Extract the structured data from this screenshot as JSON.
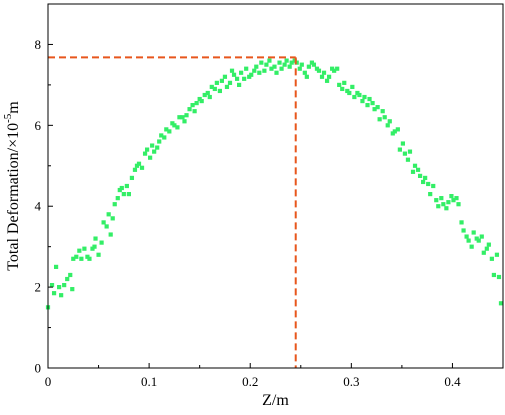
{
  "chart_data": {
    "type": "scatter",
    "title": "",
    "xlabel": "Z/m",
    "ylabel_main": "Total Deformation/×10",
    "ylabel_exp": "-5",
    "ylabel_unit": "m",
    "xlim": [
      0,
      0.45
    ],
    "ylim": [
      0,
      9
    ],
    "xticks": [
      0,
      0.1,
      0.2,
      0.3,
      0.4
    ],
    "xtick_labels": [
      "0",
      "0.1",
      "0.2",
      "0.3",
      "0.4"
    ],
    "yticks": [
      0,
      2,
      4,
      6,
      8
    ],
    "ytick_labels": [
      "0",
      "2",
      "4",
      "6",
      "8"
    ],
    "grid": false,
    "marker_color": "#33ee66",
    "reference_color": "#e8561c",
    "peak": {
      "x": 0.245,
      "y": 7.68
    },
    "series": [
      {
        "points": [
          [
            0.0,
            1.5
          ],
          [
            0.004,
            2.05
          ],
          [
            0.006,
            1.85
          ],
          [
            0.008,
            2.5
          ],
          [
            0.011,
            2.0
          ],
          [
            0.013,
            1.8
          ],
          [
            0.016,
            2.05
          ],
          [
            0.019,
            2.2
          ],
          [
            0.022,
            2.3
          ],
          [
            0.024,
            1.95
          ],
          [
            0.025,
            2.7
          ],
          [
            0.028,
            2.75
          ],
          [
            0.031,
            2.9
          ],
          [
            0.033,
            2.7
          ],
          [
            0.036,
            2.95
          ],
          [
            0.039,
            2.75
          ],
          [
            0.041,
            2.7
          ],
          [
            0.044,
            2.95
          ],
          [
            0.046,
            3.0
          ],
          [
            0.047,
            3.2
          ],
          [
            0.05,
            2.8
          ],
          [
            0.053,
            3.1
          ],
          [
            0.055,
            3.6
          ],
          [
            0.058,
            3.5
          ],
          [
            0.06,
            3.8
          ],
          [
            0.062,
            3.3
          ],
          [
            0.064,
            3.7
          ],
          [
            0.066,
            4.05
          ],
          [
            0.069,
            4.2
          ],
          [
            0.071,
            4.4
          ],
          [
            0.073,
            4.45
          ],
          [
            0.075,
            4.3
          ],
          [
            0.078,
            4.5
          ],
          [
            0.08,
            4.3
          ],
          [
            0.083,
            4.7
          ],
          [
            0.086,
            4.9
          ],
          [
            0.088,
            5.0
          ],
          [
            0.09,
            5.05
          ],
          [
            0.093,
            4.95
          ],
          [
            0.096,
            5.3
          ],
          [
            0.098,
            5.4
          ],
          [
            0.101,
            5.2
          ],
          [
            0.103,
            5.5
          ],
          [
            0.105,
            5.35
          ],
          [
            0.108,
            5.45
          ],
          [
            0.11,
            5.6
          ],
          [
            0.112,
            5.75
          ],
          [
            0.115,
            5.7
          ],
          [
            0.117,
            5.9
          ],
          [
            0.12,
            5.85
          ],
          [
            0.123,
            6.05
          ],
          [
            0.125,
            6.0
          ],
          [
            0.128,
            5.95
          ],
          [
            0.13,
            6.2
          ],
          [
            0.133,
            6.2
          ],
          [
            0.135,
            6.1
          ],
          [
            0.137,
            6.25
          ],
          [
            0.14,
            6.4
          ],
          [
            0.143,
            6.5
          ],
          [
            0.145,
            6.35
          ],
          [
            0.147,
            6.55
          ],
          [
            0.15,
            6.65
          ],
          [
            0.152,
            6.6
          ],
          [
            0.155,
            6.75
          ],
          [
            0.158,
            6.8
          ],
          [
            0.16,
            6.7
          ],
          [
            0.162,
            6.95
          ],
          [
            0.165,
            6.9
          ],
          [
            0.167,
            7.05
          ],
          [
            0.17,
            6.85
          ],
          [
            0.172,
            7.1
          ],
          [
            0.175,
            7.2
          ],
          [
            0.177,
            6.95
          ],
          [
            0.18,
            7.05
          ],
          [
            0.182,
            7.35
          ],
          [
            0.184,
            7.25
          ],
          [
            0.187,
            7.15
          ],
          [
            0.189,
            7.0
          ],
          [
            0.191,
            7.3
          ],
          [
            0.194,
            7.15
          ],
          [
            0.196,
            7.4
          ],
          [
            0.199,
            7.2
          ],
          [
            0.201,
            7.25
          ],
          [
            0.204,
            7.35
          ],
          [
            0.206,
            7.45
          ],
          [
            0.209,
            7.3
          ],
          [
            0.211,
            7.55
          ],
          [
            0.214,
            7.35
          ],
          [
            0.216,
            7.5
          ],
          [
            0.219,
            7.6
          ],
          [
            0.221,
            7.4
          ],
          [
            0.224,
            7.45
          ],
          [
            0.226,
            7.3
          ],
          [
            0.229,
            7.55
          ],
          [
            0.231,
            7.4
          ],
          [
            0.234,
            7.5
          ],
          [
            0.236,
            7.6
          ],
          [
            0.239,
            7.45
          ],
          [
            0.241,
            7.55
          ],
          [
            0.244,
            7.6
          ],
          [
            0.246,
            7.55
          ],
          [
            0.249,
            7.4
          ],
          [
            0.251,
            7.5
          ],
          [
            0.254,
            7.3
          ],
          [
            0.256,
            7.2
          ],
          [
            0.258,
            7.45
          ],
          [
            0.261,
            7.55
          ],
          [
            0.263,
            7.5
          ],
          [
            0.266,
            7.4
          ],
          [
            0.268,
            7.35
          ],
          [
            0.271,
            7.2
          ],
          [
            0.273,
            7.3
          ],
          [
            0.276,
            7.1
          ],
          [
            0.278,
            7.2
          ],
          [
            0.281,
            7.4
          ],
          [
            0.283,
            7.35
          ],
          [
            0.286,
            7.4
          ],
          [
            0.288,
            7.0
          ],
          [
            0.291,
            6.9
          ],
          [
            0.293,
            7.05
          ],
          [
            0.296,
            6.85
          ],
          [
            0.298,
            6.8
          ],
          [
            0.301,
            6.95
          ],
          [
            0.303,
            6.7
          ],
          [
            0.306,
            6.8
          ],
          [
            0.308,
            6.75
          ],
          [
            0.311,
            6.6
          ],
          [
            0.313,
            6.7
          ],
          [
            0.316,
            6.5
          ],
          [
            0.318,
            6.65
          ],
          [
            0.321,
            6.55
          ],
          [
            0.323,
            6.4
          ],
          [
            0.326,
            6.45
          ],
          [
            0.328,
            6.15
          ],
          [
            0.331,
            6.35
          ],
          [
            0.333,
            6.2
          ],
          [
            0.336,
            6.0
          ],
          [
            0.338,
            6.1
          ],
          [
            0.341,
            5.8
          ],
          [
            0.343,
            5.85
          ],
          [
            0.346,
            5.9
          ],
          [
            0.348,
            5.4
          ],
          [
            0.351,
            5.55
          ],
          [
            0.353,
            5.3
          ],
          [
            0.356,
            5.15
          ],
          [
            0.358,
            5.35
          ],
          [
            0.361,
            4.85
          ],
          [
            0.363,
            5.0
          ],
          [
            0.366,
            4.9
          ],
          [
            0.368,
            4.75
          ],
          [
            0.371,
            4.6
          ],
          [
            0.373,
            4.7
          ],
          [
            0.376,
            4.55
          ],
          [
            0.378,
            4.3
          ],
          [
            0.381,
            4.5
          ],
          [
            0.384,
            4.15
          ],
          [
            0.386,
            4.0
          ],
          [
            0.389,
            4.2
          ],
          [
            0.391,
            4.05
          ],
          [
            0.394,
            3.95
          ],
          [
            0.396,
            4.1
          ],
          [
            0.399,
            4.25
          ],
          [
            0.401,
            4.15
          ],
          [
            0.404,
            4.2
          ],
          [
            0.406,
            4.05
          ],
          [
            0.409,
            3.6
          ],
          [
            0.411,
            3.4
          ],
          [
            0.414,
            3.25
          ],
          [
            0.416,
            3.15
          ],
          [
            0.419,
            3.0
          ],
          [
            0.421,
            3.35
          ],
          [
            0.424,
            3.2
          ],
          [
            0.426,
            3.15
          ],
          [
            0.429,
            3.25
          ],
          [
            0.431,
            2.85
          ],
          [
            0.434,
            2.95
          ],
          [
            0.436,
            3.05
          ],
          [
            0.439,
            2.7
          ],
          [
            0.441,
            2.3
          ],
          [
            0.444,
            2.8
          ],
          [
            0.446,
            2.25
          ],
          [
            0.448,
            1.6
          ]
        ]
      }
    ]
  }
}
